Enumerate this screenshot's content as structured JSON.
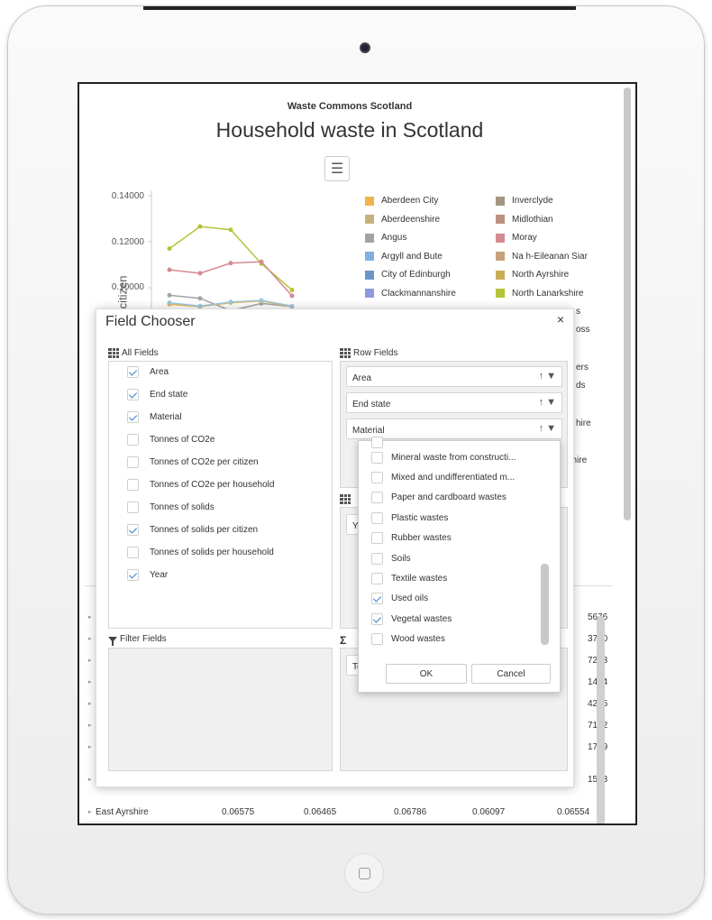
{
  "page": {
    "supertitle": "Waste Commons Scotland",
    "title": "Household waste in Scotland"
  },
  "chart_data": {
    "type": "line",
    "title": "Household waste in Scotland",
    "subtitle": "Waste Commons Scotland",
    "ylabel": "Tonnes of solids per citizen",
    "ylim": [
      0.08,
      0.14
    ],
    "yticks": [
      "0.14000",
      "0.12000",
      "0.10000"
    ],
    "x": [
      1,
      2,
      3,
      4,
      5
    ],
    "series": [
      {
        "name": "North Lanarkshire",
        "color": "#b5c33a",
        "values": [
          0.117,
          0.1266,
          0.1252,
          0.1105,
          0.099
        ]
      },
      {
        "name": "Moray",
        "color": "#d48a91",
        "values": [
          0.1078,
          0.1063,
          0.1107,
          0.1113,
          0.0965
        ]
      },
      {
        "name": "Angus",
        "color": "#a3a3a3",
        "values": [
          0.0967,
          0.0954,
          0.09,
          0.0932,
          0.0918
        ]
      },
      {
        "name": "Aberdeen City",
        "color": "#f0b44c",
        "values": [
          0.0928,
          0.0918,
          0.0935,
          0.0942,
          0.0918
        ]
      },
      {
        "name": "City of Edinburgh",
        "color": "#99c9e0",
        "values": [
          0.0935,
          0.092,
          0.0938,
          0.0945,
          0.092
        ]
      }
    ]
  },
  "legend": {
    "col1": [
      {
        "name": "Aberdeen City",
        "color": "#f0b44c"
      },
      {
        "name": "Aberdeenshire",
        "color": "#c9b07e"
      },
      {
        "name": "Angus",
        "color": "#a3a3a3"
      },
      {
        "name": "Argyll and Bute",
        "color": "#7fb1df"
      },
      {
        "name": "City of Edinburgh",
        "color": "#6b94c9"
      },
      {
        "name": "Clackmannanshire",
        "color": "#8e98de"
      }
    ],
    "col2": [
      {
        "name": "Inverclyde",
        "color": "#a39580"
      },
      {
        "name": "Midlothian",
        "color": "#bb907f"
      },
      {
        "name": "Moray",
        "color": "#d48a91"
      },
      {
        "name": "Na h-Eileanan Siar",
        "color": "#c4a27a"
      },
      {
        "name": "North Ayrshire",
        "color": "#c9ad55"
      },
      {
        "name": "North Lanarkshire",
        "color": "#b5c33a"
      }
    ],
    "partial": [
      "s",
      "oss",
      "ers",
      "ds",
      "hire",
      "nshire"
    ]
  },
  "table": {
    "rows": [
      {
        "area": "",
        "v5": "5676"
      },
      {
        "area": "",
        "v5": "3730"
      },
      {
        "area": "",
        "v5": "7243"
      },
      {
        "area": "",
        "v5": "1444"
      },
      {
        "area": "",
        "v5": "4225"
      },
      {
        "area": "",
        "v5": "7142"
      },
      {
        "area": "",
        "v5": "1759"
      },
      {
        "area": "",
        "v5": "1573"
      }
    ],
    "last_row": {
      "area": "East Ayrshire",
      "v1": "0.06575",
      "v2": "0.06465",
      "v3": "0.06786",
      "v4": "0.06097",
      "v5": "0.06554"
    }
  },
  "dialog": {
    "title": "Field Chooser",
    "close": "×",
    "all_fields_label": "All Fields",
    "row_fields_label": "Row Fields",
    "filter_fields_label": "Filter Fields",
    "column_partial": "Y",
    "data_partial": "To",
    "fields": [
      {
        "label": "Area",
        "checked": true
      },
      {
        "label": "End state",
        "checked": true
      },
      {
        "label": "Material",
        "checked": true
      },
      {
        "label": "Tonnes of CO2e",
        "checked": false
      },
      {
        "label": "Tonnes of CO2e per citizen",
        "checked": false
      },
      {
        "label": "Tonnes of CO2e per household",
        "checked": false
      },
      {
        "label": "Tonnes of solids",
        "checked": false
      },
      {
        "label": "Tonnes of solids per citizen",
        "checked": true
      },
      {
        "label": "Tonnes of solids per household",
        "checked": false
      },
      {
        "label": "Year",
        "checked": true
      }
    ],
    "row_fields": [
      "Area",
      "End state",
      "Material"
    ]
  },
  "filter_popup": {
    "items": [
      {
        "label": "Mineral waste from constructi...",
        "checked": false
      },
      {
        "label": "Mixed and undifferentiated m...",
        "checked": false
      },
      {
        "label": "Paper and cardboard wastes",
        "checked": false
      },
      {
        "label": "Plastic wastes",
        "checked": false
      },
      {
        "label": "Rubber wastes",
        "checked": false
      },
      {
        "label": "Soils",
        "checked": false
      },
      {
        "label": "Textile wastes",
        "checked": false
      },
      {
        "label": "Used oils",
        "checked": true
      },
      {
        "label": "Vegetal wastes",
        "checked": true
      },
      {
        "label": "Wood wastes",
        "checked": false
      }
    ],
    "ok": "OK",
    "cancel": "Cancel"
  }
}
